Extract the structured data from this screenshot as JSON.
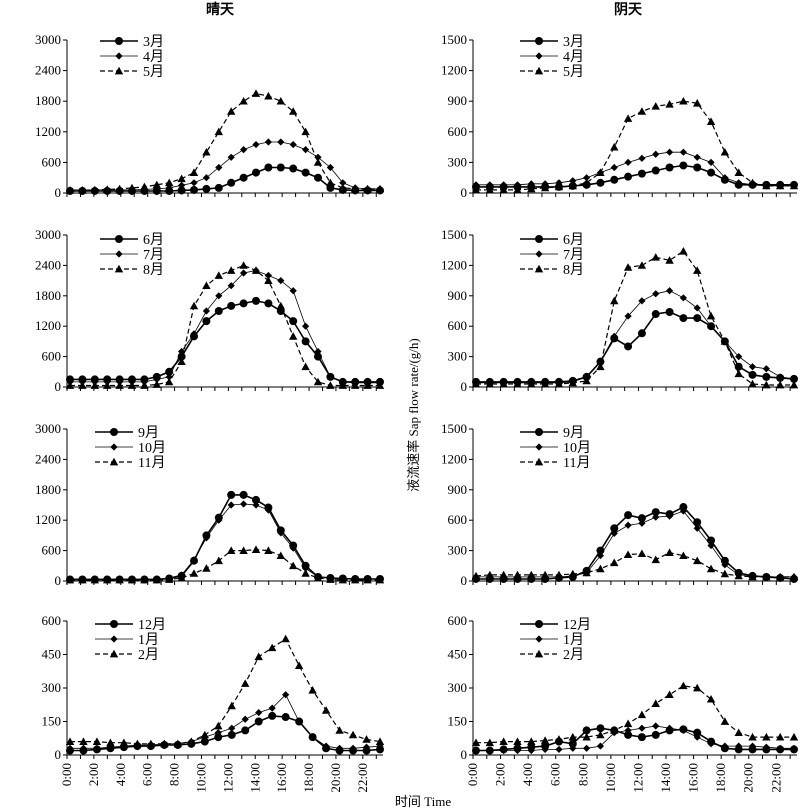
{
  "chart_data": [
    {
      "type": "line",
      "title": "晴天",
      "ylim": [
        0,
        3000
      ],
      "yticks": [
        "0",
        "600",
        "1200",
        "1800",
        "2400",
        "3000"
      ],
      "series": [
        {
          "name": "3月",
          "style": "circle-solid",
          "values": [
            40,
            40,
            40,
            40,
            40,
            40,
            40,
            40,
            40,
            50,
            60,
            80,
            100,
            200,
            300,
            400,
            500,
            500,
            480,
            400,
            300,
            100,
            60,
            50,
            50,
            50
          ]
        },
        {
          "name": "4月",
          "style": "diamond-thin",
          "values": [
            60,
            60,
            60,
            60,
            60,
            60,
            70,
            80,
            100,
            150,
            200,
            300,
            500,
            700,
            850,
            950,
            1000,
            1000,
            950,
            850,
            700,
            500,
            200,
            100,
            80,
            80
          ]
        },
        {
          "name": "5月",
          "style": "triangle-dashed",
          "values": [
            50,
            50,
            60,
            70,
            80,
            100,
            120,
            160,
            200,
            280,
            400,
            800,
            1200,
            1600,
            1800,
            1950,
            1900,
            1800,
            1600,
            1200,
            600,
            200,
            100,
            80,
            80,
            80
          ]
        }
      ]
    },
    {
      "type": "line",
      "title": "阴天",
      "ylim": [
        0,
        1500
      ],
      "yticks": [
        "0",
        "300",
        "600",
        "900",
        "1200",
        "1500"
      ],
      "series": [
        {
          "name": "3月",
          "style": "circle-solid",
          "values": [
            60,
            60,
            60,
            60,
            60,
            60,
            60,
            70,
            80,
            100,
            130,
            160,
            190,
            220,
            250,
            270,
            250,
            200,
            130,
            80,
            80,
            80,
            80,
            80
          ]
        },
        {
          "name": "4月",
          "style": "diamond-thin",
          "values": [
            80,
            80,
            80,
            80,
            90,
            90,
            100,
            120,
            150,
            200,
            250,
            300,
            340,
            380,
            400,
            400,
            350,
            300,
            150,
            100,
            80,
            70,
            70,
            70
          ]
        },
        {
          "name": "5月",
          "style": "triangle-dashed",
          "values": [
            30,
            30,
            30,
            30,
            40,
            50,
            60,
            70,
            100,
            200,
            450,
            730,
            800,
            850,
            870,
            900,
            880,
            700,
            400,
            200,
            100,
            70,
            70,
            70
          ]
        }
      ]
    },
    {
      "type": "line",
      "title": "",
      "ylim": [
        0,
        3000
      ],
      "yticks": [
        "0",
        "600",
        "1200",
        "1800",
        "2400",
        "3000"
      ],
      "series": [
        {
          "name": "6月",
          "style": "circle-solid",
          "values": [
            150,
            150,
            150,
            150,
            150,
            150,
            150,
            200,
            300,
            600,
            1000,
            1300,
            1500,
            1600,
            1650,
            1700,
            1650,
            1500,
            1300,
            900,
            600,
            200,
            100,
            100,
            100,
            100
          ]
        },
        {
          "name": "7月",
          "style": "diamond-thin",
          "values": [
            100,
            100,
            100,
            100,
            100,
            100,
            100,
            150,
            200,
            700,
            1050,
            1500,
            1800,
            2000,
            2250,
            2300,
            2200,
            2100,
            1900,
            1200,
            700,
            200,
            100,
            80,
            80,
            80
          ]
        },
        {
          "name": "8月",
          "style": "triangle-dashed",
          "values": [
            30,
            30,
            30,
            30,
            30,
            30,
            30,
            50,
            100,
            500,
            1600,
            2000,
            2200,
            2300,
            2400,
            2300,
            2100,
            1600,
            1000,
            400,
            100,
            30,
            30,
            30,
            30,
            30
          ]
        }
      ]
    },
    {
      "type": "line",
      "title": "",
      "ylim": [
        0,
        1500
      ],
      "yticks": [
        "0",
        "300",
        "600",
        "900",
        "1200",
        "1500"
      ],
      "series": [
        {
          "name": "6月",
          "style": "circle-solid",
          "values": [
            50,
            50,
            50,
            50,
            50,
            50,
            50,
            60,
            100,
            250,
            480,
            400,
            530,
            720,
            740,
            680,
            680,
            600,
            450,
            200,
            120,
            100,
            90,
            80
          ]
        },
        {
          "name": "7月",
          "style": "diamond-thin",
          "values": [
            40,
            40,
            40,
            40,
            40,
            40,
            40,
            50,
            100,
            250,
            500,
            700,
            850,
            920,
            950,
            880,
            780,
            600,
            450,
            300,
            200,
            180,
            100,
            80
          ]
        },
        {
          "name": "8月",
          "style": "triangle-dashed",
          "values": [
            30,
            30,
            30,
            30,
            30,
            30,
            30,
            40,
            60,
            200,
            850,
            1180,
            1200,
            1280,
            1250,
            1340,
            1150,
            700,
            450,
            130,
            30,
            20,
            20,
            20
          ]
        }
      ]
    },
    {
      "type": "line",
      "title": "",
      "ylim": [
        0,
        3000
      ],
      "yticks": [
        "0",
        "600",
        "1200",
        "1800",
        "2400",
        "3000"
      ],
      "series": [
        {
          "name": "9月",
          "style": "circle-solid",
          "values": [
            30,
            30,
            30,
            30,
            30,
            30,
            30,
            30,
            50,
            100,
            400,
            900,
            1250,
            1700,
            1700,
            1600,
            1450,
            1000,
            700,
            300,
            80,
            60,
            50,
            40,
            40,
            40
          ]
        },
        {
          "name": "10月",
          "style": "diamond-thin",
          "values": [
            40,
            40,
            40,
            40,
            40,
            40,
            40,
            40,
            60,
            120,
            420,
            850,
            1200,
            1500,
            1520,
            1500,
            1400,
            950,
            650,
            250,
            80,
            60,
            50,
            40,
            40,
            40
          ]
        },
        {
          "name": "11月",
          "style": "triangle-dashed",
          "values": [
            20,
            20,
            20,
            20,
            20,
            20,
            20,
            20,
            30,
            60,
            150,
            250,
            400,
            600,
            600,
            620,
            600,
            500,
            300,
            150,
            60,
            30,
            20,
            20,
            20,
            20
          ]
        }
      ]
    },
    {
      "type": "line",
      "title": "",
      "ylim": [
        0,
        1500
      ],
      "yticks": [
        "0",
        "300",
        "600",
        "900",
        "1200",
        "1500"
      ],
      "series": [
        {
          "name": "9月",
          "style": "circle-solid",
          "values": [
            20,
            20,
            20,
            20,
            20,
            20,
            30,
            40,
            100,
            300,
            520,
            650,
            620,
            680,
            660,
            730,
            580,
            400,
            200,
            80,
            50,
            40,
            30,
            20
          ]
        },
        {
          "name": "10月",
          "style": "diamond-thin",
          "values": [
            40,
            40,
            40,
            40,
            40,
            40,
            40,
            50,
            80,
            250,
            470,
            550,
            570,
            630,
            640,
            690,
            520,
            350,
            160,
            60,
            50,
            40,
            40,
            40
          ]
        },
        {
          "name": "11月",
          "style": "triangle-dashed",
          "values": [
            50,
            60,
            60,
            60,
            60,
            60,
            60,
            70,
            80,
            120,
            180,
            260,
            270,
            210,
            280,
            250,
            200,
            120,
            70,
            50,
            40,
            40,
            40,
            40
          ]
        }
      ]
    },
    {
      "type": "line",
      "title": "",
      "ylim": [
        0,
        600
      ],
      "yticks": [
        "0",
        "150",
        "300",
        "450",
        "600"
      ],
      "series": [
        {
          "name": "12月",
          "style": "circle-solid",
          "values": [
            20,
            20,
            25,
            30,
            35,
            40,
            40,
            45,
            45,
            50,
            60,
            80,
            90,
            110,
            150,
            175,
            170,
            150,
            80,
            30,
            20,
            20,
            20,
            25
          ]
        },
        {
          "name": "1月",
          "style": "diamond-thin",
          "values": [
            30,
            30,
            30,
            35,
            40,
            45,
            45,
            50,
            50,
            60,
            80,
            100,
            120,
            160,
            190,
            210,
            270,
            150,
            80,
            40,
            30,
            30,
            35,
            40
          ]
        },
        {
          "name": "2月",
          "style": "triangle-dashed",
          "values": [
            60,
            60,
            60,
            55,
            55,
            50,
            50,
            50,
            50,
            60,
            90,
            130,
            220,
            320,
            440,
            480,
            520,
            400,
            290,
            200,
            110,
            90,
            70,
            60
          ]
        }
      ]
    },
    {
      "type": "line",
      "title": "",
      "ylim": [
        0,
        600
      ],
      "yticks": [
        "0",
        "150",
        "300",
        "450",
        "600"
      ],
      "series": [
        {
          "name": "12月",
          "style": "circle-solid",
          "values": [
            20,
            20,
            25,
            30,
            35,
            40,
            60,
            50,
            110,
            120,
            110,
            90,
            80,
            90,
            110,
            115,
            100,
            60,
            30,
            25,
            25,
            25,
            25,
            25
          ]
        },
        {
          "name": "1月",
          "style": "diamond-thin",
          "values": [
            20,
            20,
            20,
            20,
            20,
            25,
            25,
            30,
            30,
            40,
            100,
            110,
            120,
            130,
            120,
            110,
            80,
            50,
            40,
            40,
            40,
            35,
            30,
            30
          ]
        },
        {
          "name": "2月",
          "style": "triangle-dashed",
          "values": [
            55,
            55,
            60,
            60,
            60,
            65,
            70,
            80,
            80,
            90,
            110,
            140,
            180,
            230,
            270,
            310,
            300,
            250,
            150,
            100,
            80,
            80,
            80,
            80
          ]
        }
      ]
    }
  ],
  "x_ticks": [
    "0:00",
    "2:00",
    "4:00",
    "6:00",
    "8:00",
    "10:00",
    "12:00",
    "14:00",
    "16:00",
    "18:00",
    "20:00",
    "22:00"
  ],
  "ylabel": "液流速率 Sap flow rate/(g/h)",
  "xlabel": "时间 Time",
  "colors": {
    "line": "#000000",
    "background": "#ffffff"
  }
}
